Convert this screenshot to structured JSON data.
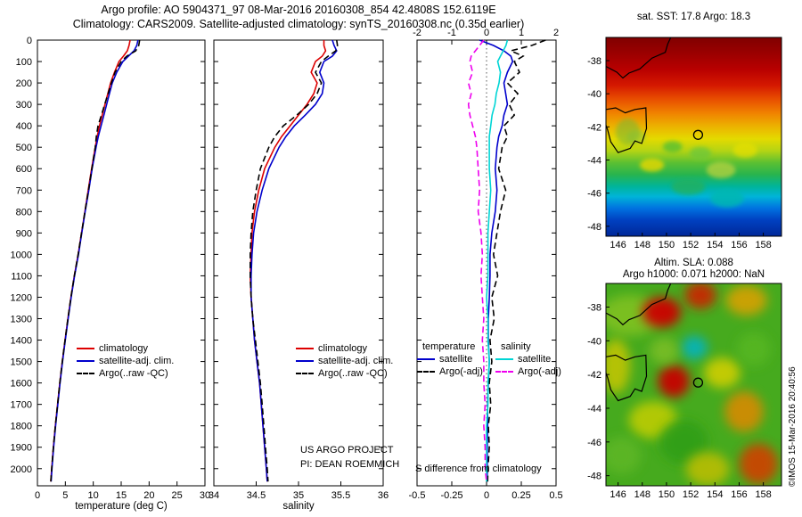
{
  "header": {
    "title_line1": "Argo profile: AO 5904371_97 08-Mar-2016 20160308_854 42.4808S 152.6119E",
    "title_line2": "Climatology: CARS2009. Satellite-adjusted climatology: synTS_20160308.nc (0.35d earlier)"
  },
  "annotations": {
    "project_line1": "US ARGO PROJECT",
    "project_line2": "PI: DEAN ROEMMICH",
    "s_diff_label": "S difference from climatology",
    "credit": "©IMOS 15-Mar-2016 20:40:56"
  },
  "depth_ticks": [
    0,
    100,
    200,
    300,
    400,
    500,
    600,
    700,
    800,
    900,
    1000,
    1100,
    1200,
    1300,
    1400,
    1500,
    1600,
    1700,
    1800,
    1900,
    2000
  ],
  "chart_data": [
    {
      "type": "line",
      "id": "temperature-profile",
      "xlabel": "temperature (deg C)",
      "ylabel": "",
      "xlim": [
        0,
        30
      ],
      "xticks": [
        0,
        5,
        10,
        15,
        20,
        25,
        30
      ],
      "ylim": [
        0,
        2080
      ],
      "depths": [
        0,
        25,
        50,
        75,
        100,
        150,
        200,
        250,
        300,
        350,
        400,
        450,
        500,
        600,
        700,
        800,
        900,
        1000,
        1100,
        1200,
        1300,
        1400,
        1500,
        1600,
        1700,
        1800,
        1900,
        2000,
        2060
      ],
      "series": [
        {
          "name": "climatology",
          "color": "#dd0000",
          "dash": false,
          "values": [
            16.6,
            16.4,
            16.1,
            15.4,
            14.6,
            13.8,
            13.1,
            12.6,
            12.1,
            11.6,
            11.1,
            10.7,
            10.35,
            9.7,
            9.1,
            8.5,
            7.9,
            7.3,
            6.6,
            6.0,
            5.45,
            4.95,
            4.45,
            4.0,
            3.6,
            3.2,
            2.85,
            2.55,
            2.4
          ]
        },
        {
          "name": "satellite-adj. clim.",
          "color": "#0000cc",
          "dash": false,
          "values": [
            18.0,
            17.8,
            17.3,
            16.3,
            15.3,
            14.2,
            13.4,
            12.9,
            12.4,
            11.9,
            11.4,
            10.9,
            10.5,
            9.8,
            9.2,
            8.55,
            7.95,
            7.35,
            6.65,
            6.05,
            5.5,
            5.0,
            4.5,
            4.05,
            3.65,
            3.25,
            2.9,
            2.6,
            2.45
          ]
        },
        {
          "name": "Argo(..raw -QC)",
          "color": "#000000",
          "dash": true,
          "values": [
            18.3,
            18.15,
            17.6,
            16.0,
            15.0,
            13.9,
            13.25,
            12.65,
            12.05,
            11.45,
            10.85,
            10.55,
            10.35,
            9.75,
            9.15,
            8.5,
            7.9,
            7.3,
            6.6,
            6.0,
            5.45,
            4.95,
            4.45,
            4.0,
            3.6,
            3.2,
            2.85,
            2.55,
            2.4
          ]
        }
      ]
    },
    {
      "type": "line",
      "id": "salinity-profile",
      "xlabel": "salinity",
      "ylabel": "",
      "xlim": [
        34,
        36
      ],
      "xticks": [
        34,
        34.5,
        35,
        35.5,
        36
      ],
      "ylim": [
        0,
        2080
      ],
      "depths": [
        0,
        25,
        50,
        75,
        100,
        150,
        200,
        250,
        300,
        350,
        400,
        450,
        500,
        600,
        700,
        800,
        900,
        1000,
        1100,
        1200,
        1300,
        1400,
        1500,
        1600,
        1700,
        1800,
        1900,
        2000,
        2060
      ],
      "series": [
        {
          "name": "climatology",
          "color": "#dd0000",
          "dash": false,
          "values": [
            35.3,
            35.3,
            35.32,
            35.28,
            35.2,
            35.15,
            35.22,
            35.18,
            35.1,
            35.0,
            34.9,
            34.8,
            34.72,
            34.6,
            34.53,
            34.48,
            34.45,
            34.44,
            34.43,
            34.44,
            34.46,
            34.48,
            34.51,
            34.54,
            34.56,
            34.58,
            34.6,
            34.62,
            34.63
          ]
        },
        {
          "name": "satellite-adj. clim.",
          "color": "#0000cc",
          "dash": false,
          "values": [
            35.4,
            35.42,
            35.45,
            35.4,
            35.3,
            35.25,
            35.3,
            35.28,
            35.2,
            35.08,
            34.95,
            34.85,
            34.77,
            34.65,
            34.57,
            34.51,
            34.47,
            34.45,
            34.44,
            34.44,
            34.46,
            34.48,
            34.51,
            34.54,
            34.56,
            34.58,
            34.6,
            34.62,
            34.63
          ]
        },
        {
          "name": "Argo(..raw -QC)",
          "color": "#000000",
          "dash": true,
          "values": [
            35.45,
            35.46,
            35.44,
            35.35,
            35.27,
            35.2,
            35.27,
            35.22,
            35.12,
            34.98,
            34.82,
            34.72,
            34.65,
            34.55,
            34.5,
            34.46,
            34.44,
            34.43,
            34.43,
            34.44,
            34.46,
            34.49,
            34.52,
            34.55,
            34.57,
            34.59,
            34.61,
            34.63,
            34.64
          ]
        }
      ]
    },
    {
      "type": "line",
      "id": "difference-profile",
      "xlabel": "",
      "xlim": [
        -0.5,
        0.5
      ],
      "xticks": [
        -0.5,
        -0.25,
        0,
        0.25,
        0.5
      ],
      "xlim_top": [
        -2,
        2
      ],
      "xticks_top": [
        -2,
        -1,
        0,
        1,
        2
      ],
      "zero_line": true,
      "ylim": [
        0,
        2080
      ],
      "legend_titles": [
        "temperature",
        "salinity"
      ],
      "depths": [
        0,
        25,
        50,
        75,
        100,
        150,
        200,
        250,
        300,
        350,
        400,
        450,
        500,
        600,
        700,
        800,
        900,
        1000,
        1100,
        1200,
        1300,
        1400,
        1500,
        1600,
        1700,
        1800,
        1900,
        2000,
        2060
      ],
      "series": [
        {
          "name": "satellite",
          "group": "temperature",
          "axis": "top",
          "color": "#0000cc",
          "dash": false,
          "values": [
            -0.2,
            0.2,
            0.5,
            0.7,
            0.75,
            0.6,
            0.5,
            0.55,
            0.6,
            0.5,
            0.45,
            0.35,
            0.3,
            0.25,
            0.3,
            0.25,
            0.15,
            0.1,
            0.1,
            0.08,
            0.05,
            0.05,
            0.08,
            0.05,
            0.03,
            0.03,
            0.02,
            0.02,
            0.02
          ]
        },
        {
          "name": "Argo(-adj)",
          "group": "temperature",
          "axis": "top",
          "color": "#000000",
          "dash": true,
          "values": [
            1.7,
            1.3,
            0.7,
            1.05,
            0.8,
            0.95,
            0.6,
            0.9,
            0.65,
            0.8,
            0.5,
            0.6,
            0.45,
            0.35,
            0.55,
            0.4,
            0.3,
            0.2,
            0.32,
            0.15,
            0.22,
            0.1,
            0.15,
            0.08,
            0.12,
            0.05,
            0.08,
            0.04,
            0.03
          ]
        },
        {
          "name": "satellite",
          "group": "salinity",
          "axis": "bottom",
          "color": "#00d5d5",
          "dash": false,
          "values": [
            0.15,
            0.14,
            0.12,
            0.1,
            0.08,
            0.1,
            0.09,
            0.07,
            0.06,
            0.04,
            0.03,
            0.02,
            0.02,
            0.02,
            0.03,
            0.02,
            0.01,
            0.01,
            0.01,
            0.0,
            0.01,
            0.01,
            0.02,
            0.01,
            0.01,
            0.0,
            0.0,
            0.0,
            0.0
          ]
        },
        {
          "name": "Argo(-adj)",
          "group": "salinity",
          "axis": "bottom",
          "color": "#ee00ee",
          "dash": true,
          "values": [
            -0.02,
            -0.05,
            -0.08,
            -0.11,
            -0.12,
            -0.1,
            -0.13,
            -0.11,
            -0.13,
            -0.12,
            -0.1,
            -0.08,
            -0.07,
            -0.06,
            -0.05,
            -0.06,
            -0.04,
            -0.03,
            -0.04,
            -0.03,
            -0.02,
            -0.03,
            -0.02,
            -0.02,
            -0.01,
            -0.02,
            -0.01,
            -0.01,
            0.0
          ]
        }
      ]
    },
    {
      "type": "heatmap",
      "id": "sst-map",
      "title": "sat. SST: 17.8  Argo: 18.3",
      "lon_range": [
        145,
        159.5
      ],
      "lat_range": [
        -36.6,
        -48.6
      ],
      "xticks": [
        146,
        148,
        150,
        152,
        154,
        156,
        158
      ],
      "yticks": [
        -38,
        -40,
        -42,
        -44,
        -46,
        -48
      ],
      "marker": {
        "lon": 152.61,
        "lat": -42.48
      },
      "gradient_stops": [
        [
          "0%",
          "#800000"
        ],
        [
          "8%",
          "#9b0000"
        ],
        [
          "16%",
          "#b80000"
        ],
        [
          "24%",
          "#d41800"
        ],
        [
          "31%",
          "#e84e00"
        ],
        [
          "38%",
          "#f08200"
        ],
        [
          "45%",
          "#ecb400"
        ],
        [
          "51%",
          "#e4da00"
        ],
        [
          "57%",
          "#b4d414"
        ],
        [
          "63%",
          "#5cc032"
        ],
        [
          "69%",
          "#28b44e"
        ],
        [
          "75%",
          "#00b49a"
        ],
        [
          "80%",
          "#00b4d8"
        ],
        [
          "86%",
          "#0072e0"
        ],
        [
          "92%",
          "#0040c0"
        ],
        [
          "100%",
          "#002898"
        ]
      ],
      "blobs": [
        {
          "lon": 150.5,
          "lat": -43.2,
          "rx": 0.8,
          "ry": 0.35,
          "color": "#58c030",
          "opacity": 0.8
        },
        {
          "lon": 152.8,
          "lat": -43.6,
          "rx": 0.9,
          "ry": 0.4,
          "color": "#70c838",
          "opacity": 0.8
        },
        {
          "lon": 148.8,
          "lat": -44.3,
          "rx": 1.0,
          "ry": 0.4,
          "color": "#e8d800",
          "opacity": 0.8
        },
        {
          "lon": 154.5,
          "lat": -44.6,
          "rx": 1.2,
          "ry": 0.5,
          "color": "#b0d040",
          "opacity": 0.8
        },
        {
          "lon": 156.5,
          "lat": -43.4,
          "rx": 1.0,
          "ry": 0.45,
          "color": "#e8e000",
          "opacity": 0.7
        },
        {
          "lon": 147.5,
          "lat": -42.6,
          "rx": 0.8,
          "ry": 0.4,
          "color": "#a0cc30",
          "opacity": 0.7
        },
        {
          "lon": 146.8,
          "lat": -42.3,
          "rx": 1.0,
          "ry": 0.8,
          "color": "#80b830",
          "opacity": 0.6
        },
        {
          "lon": 151.8,
          "lat": -45.6,
          "rx": 1.4,
          "ry": 0.5,
          "color": "#20b060",
          "opacity": 0.8
        },
        {
          "lon": 155.0,
          "lat": -46.3,
          "rx": 1.4,
          "ry": 0.55,
          "color": "#00b8b0",
          "opacity": 0.8
        }
      ]
    },
    {
      "type": "heatmap",
      "id": "sla-map",
      "title": "Altim. SLA: 0.088",
      "subtitle": "Argo h1000: 0.071 h2000: NaN",
      "lon_range": [
        145,
        159.5
      ],
      "lat_range": [
        -36.6,
        -48.6
      ],
      "xticks": [
        146,
        148,
        150,
        152,
        154,
        156,
        158
      ],
      "yticks": [
        -38,
        -40,
        -42,
        -44,
        -46,
        -48
      ],
      "marker": {
        "lon": 152.61,
        "lat": -42.48
      },
      "base_color": "#46aa1e",
      "blobs": [
        {
          "lon": 147.0,
          "lat": -38.5,
          "rx": 2.5,
          "ry": 1.2,
          "color": "#90c820",
          "opacity": 0.7
        },
        {
          "lon": 149.6,
          "lat": -38.3,
          "rx": 1.6,
          "ry": 0.9,
          "color": "#cc0000",
          "opacity": 0.95
        },
        {
          "lon": 152.8,
          "lat": -37.3,
          "rx": 1.3,
          "ry": 0.8,
          "color": "#cc2000",
          "opacity": 0.9
        },
        {
          "lon": 156.6,
          "lat": -37.6,
          "rx": 1.7,
          "ry": 0.9,
          "color": "#e0a000",
          "opacity": 0.85
        },
        {
          "lon": 145.8,
          "lat": -41.5,
          "rx": 1.2,
          "ry": 1.6,
          "color": "#d0c800",
          "opacity": 0.8
        },
        {
          "lon": 150.6,
          "lat": -42.4,
          "rx": 1.3,
          "ry": 0.95,
          "color": "#c80000",
          "opacity": 0.95
        },
        {
          "lon": 152.3,
          "lat": -40.4,
          "rx": 1.1,
          "ry": 0.7,
          "color": "#00b4c8",
          "opacity": 0.85
        },
        {
          "lon": 154.6,
          "lat": -41.9,
          "rx": 1.5,
          "ry": 0.9,
          "color": "#d8d000",
          "opacity": 0.85
        },
        {
          "lon": 157.2,
          "lat": -40.5,
          "rx": 1.4,
          "ry": 1.0,
          "color": "#58b820",
          "opacity": 0.8
        },
        {
          "lon": 149.8,
          "lat": -40.6,
          "rx": 1.2,
          "ry": 0.8,
          "color": "#80c028",
          "opacity": 0.8
        },
        {
          "lon": 148.9,
          "lat": -44.7,
          "rx": 2.0,
          "ry": 1.1,
          "color": "#ccd000",
          "opacity": 0.8
        },
        {
          "lon": 146.3,
          "lat": -46.8,
          "rx": 1.6,
          "ry": 1.1,
          "color": "#60b828",
          "opacity": 0.8
        },
        {
          "lon": 151.4,
          "lat": -46.0,
          "rx": 2.0,
          "ry": 1.3,
          "color": "#2f9e18",
          "opacity": 0.85
        },
        {
          "lon": 156.4,
          "lat": -44.2,
          "rx": 1.6,
          "ry": 1.2,
          "color": "#e08800",
          "opacity": 0.85
        },
        {
          "lon": 157.6,
          "lat": -47.3,
          "rx": 1.6,
          "ry": 1.2,
          "color": "#d04000",
          "opacity": 0.9
        },
        {
          "lon": 153.4,
          "lat": -47.6,
          "rx": 1.8,
          "ry": 1.0,
          "color": "#c8c000",
          "opacity": 0.8
        }
      ]
    }
  ],
  "map_common": {
    "coast_mainland": [
      [
        145,
        -38.35
      ],
      [
        145.9,
        -38.7
      ],
      [
        146.4,
        -39.05
      ],
      [
        146.9,
        -38.75
      ],
      [
        147.8,
        -38.5
      ],
      [
        148.8,
        -37.85
      ],
      [
        149.9,
        -37.5
      ],
      [
        150.1,
        -37.0
      ],
      [
        150.35,
        -36.6
      ]
    ],
    "coast_tasmania": [
      [
        145,
        -40.95
      ],
      [
        145.8,
        -40.85
      ],
      [
        146.6,
        -41.15
      ],
      [
        147.4,
        -40.95
      ],
      [
        148.3,
        -40.85
      ],
      [
        148.35,
        -42.1
      ],
      [
        147.95,
        -43.0
      ],
      [
        147.4,
        -42.85
      ],
      [
        147.0,
        -43.3
      ],
      [
        146.0,
        -43.55
      ],
      [
        145.4,
        -42.9
      ],
      [
        145.15,
        -42.2
      ],
      [
        145,
        -41.9
      ]
    ]
  }
}
